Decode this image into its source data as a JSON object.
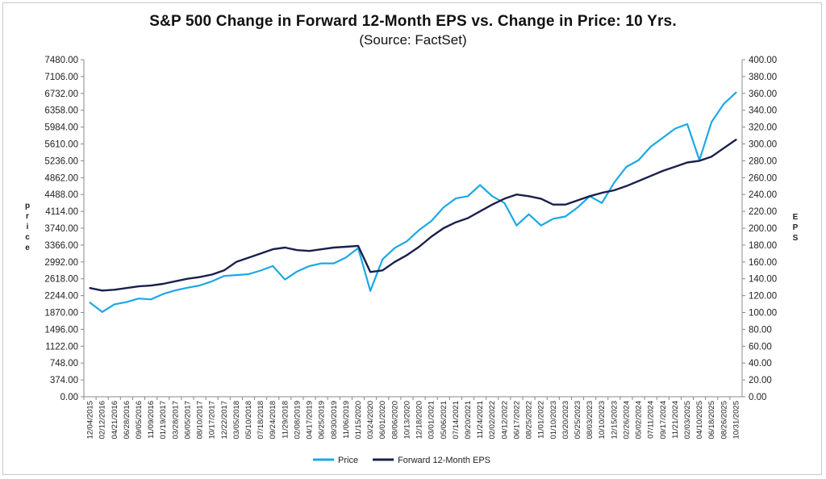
{
  "chart_data": {
    "type": "line",
    "title": "S&P 500 Change in Forward 12-Month EPS vs. Change in Price: 10 Yrs.",
    "subtitle": "(Source: FactSet)",
    "ylabel_left": "Price",
    "ylabel_right": "EPS",
    "ylim_left": [
      0,
      7480
    ],
    "ylim_right": [
      0,
      400
    ],
    "yticks_left": [
      "7480.00",
      "7106.00",
      "6732.00",
      "6358.00",
      "5984.00",
      "5610.00",
      "5236.00",
      "4862.00",
      "4488.00",
      "4114.00",
      "3740.00",
      "3366.00",
      "2992.00",
      "2618.00",
      "2244.00",
      "1870.00",
      "1496.00",
      "1122.00",
      "748.00",
      "374.00",
      "0.00"
    ],
    "yticks_right": [
      "400.00",
      "380.00",
      "360.00",
      "340.00",
      "320.00",
      "300.00",
      "280.00",
      "260.00",
      "240.00",
      "220.00",
      "200.00",
      "180.00",
      "160.00",
      "140.00",
      "120.00",
      "100.00",
      "80.00",
      "60.00",
      "40.00",
      "20.00",
      "0.00"
    ],
    "x_tick_labels": [
      "12/04/2015",
      "02/12/2016",
      "04/21/2016",
      "06/28/2016",
      "09/05/2016",
      "11/09/2016",
      "01/19/2017",
      "03/28/2017",
      "06/05/2017",
      "08/10/2017",
      "10/17/2017",
      "12/22/2017",
      "03/05/2018",
      "05/10/2018",
      "07/18/2018",
      "09/24/2018",
      "11/29/2018",
      "02/08/2019",
      "04/17/2019",
      "06/25/2019",
      "08/30/2019",
      "11/06/2019",
      "01/15/2020",
      "03/24/2020",
      "06/01/2020",
      "08/06/2020",
      "10/13/2020",
      "12/18/2020",
      "03/01/2021",
      "05/06/2021",
      "07/14/2021",
      "09/20/2021",
      "11/24/2021",
      "02/02/2022",
      "04/12/2022",
      "06/17/2022",
      "08/25/2022",
      "11/01/2022",
      "01/10/2023",
      "03/20/2023",
      "05/25/2023",
      "08/03/2023",
      "10/10/2023",
      "12/15/2023",
      "02/26/2024",
      "05/02/2024",
      "07/11/2024",
      "09/17/2024",
      "11/21/2024",
      "02/03/2025",
      "04/10/2025",
      "06/18/2025",
      "08/26/2025",
      "10/31/2025"
    ],
    "series": [
      {
        "name": "Price",
        "axis": "left",
        "color": "#1ba8e6",
        "points": [
          [
            0,
            2090
          ],
          [
            1,
            1880
          ],
          [
            2,
            2050
          ],
          [
            3,
            2100
          ],
          [
            4,
            2180
          ],
          [
            5,
            2160
          ],
          [
            6,
            2280
          ],
          [
            7,
            2360
          ],
          [
            8,
            2420
          ],
          [
            9,
            2470
          ],
          [
            10,
            2560
          ],
          [
            11,
            2680
          ],
          [
            12,
            2700
          ],
          [
            13,
            2720
          ],
          [
            14,
            2800
          ],
          [
            15,
            2900
          ],
          [
            16,
            2600
          ],
          [
            17,
            2780
          ],
          [
            18,
            2900
          ],
          [
            19,
            2960
          ],
          [
            20,
            2960
          ],
          [
            21,
            3090
          ],
          [
            22,
            3300
          ],
          [
            23,
            2350
          ],
          [
            24,
            3050
          ],
          [
            25,
            3300
          ],
          [
            26,
            3450
          ],
          [
            27,
            3700
          ],
          [
            28,
            3900
          ],
          [
            29,
            4200
          ],
          [
            30,
            4400
          ],
          [
            31,
            4450
          ],
          [
            32,
            4700
          ],
          [
            33,
            4450
          ],
          [
            34,
            4300
          ],
          [
            35,
            3800
          ],
          [
            36,
            4050
          ],
          [
            37,
            3800
          ],
          [
            38,
            3950
          ],
          [
            39,
            4000
          ],
          [
            40,
            4200
          ],
          [
            41,
            4450
          ],
          [
            42,
            4300
          ],
          [
            43,
            4750
          ],
          [
            44,
            5100
          ],
          [
            45,
            5250
          ],
          [
            46,
            5550
          ],
          [
            47,
            5750
          ],
          [
            48,
            5950
          ],
          [
            49,
            6050
          ],
          [
            50,
            5250
          ],
          [
            51,
            6100
          ],
          [
            52,
            6500
          ],
          [
            53,
            6750
          ]
        ]
      },
      {
        "name": "Forward 12-Month EPS",
        "axis": "right",
        "color": "#1a1f4c",
        "points": [
          [
            0,
            129
          ],
          [
            1,
            126
          ],
          [
            2,
            127
          ],
          [
            3,
            129
          ],
          [
            4,
            131
          ],
          [
            5,
            132
          ],
          [
            6,
            134
          ],
          [
            7,
            137
          ],
          [
            8,
            140
          ],
          [
            9,
            142
          ],
          [
            10,
            145
          ],
          [
            11,
            150
          ],
          [
            12,
            160
          ],
          [
            13,
            165
          ],
          [
            14,
            170
          ],
          [
            15,
            175
          ],
          [
            16,
            177
          ],
          [
            17,
            174
          ],
          [
            18,
            173
          ],
          [
            19,
            175
          ],
          [
            20,
            177
          ],
          [
            21,
            178
          ],
          [
            22,
            179
          ],
          [
            23,
            148
          ],
          [
            24,
            150
          ],
          [
            25,
            160
          ],
          [
            26,
            168
          ],
          [
            27,
            178
          ],
          [
            28,
            190
          ],
          [
            29,
            200
          ],
          [
            30,
            207
          ],
          [
            31,
            212
          ],
          [
            32,
            220
          ],
          [
            33,
            228
          ],
          [
            34,
            235
          ],
          [
            35,
            240
          ],
          [
            36,
            238
          ],
          [
            37,
            235
          ],
          [
            38,
            228
          ],
          [
            39,
            228
          ],
          [
            40,
            233
          ],
          [
            41,
            238
          ],
          [
            42,
            242
          ],
          [
            43,
            245
          ],
          [
            44,
            250
          ],
          [
            45,
            256
          ],
          [
            46,
            262
          ],
          [
            47,
            268
          ],
          [
            48,
            273
          ],
          [
            49,
            278
          ],
          [
            50,
            280
          ],
          [
            51,
            285
          ],
          [
            52,
            295
          ],
          [
            53,
            305
          ]
        ]
      }
    ],
    "legend": {
      "position": "bottom",
      "entries": [
        "Price",
        "Forward 12-Month EPS"
      ]
    },
    "grid": false
  }
}
